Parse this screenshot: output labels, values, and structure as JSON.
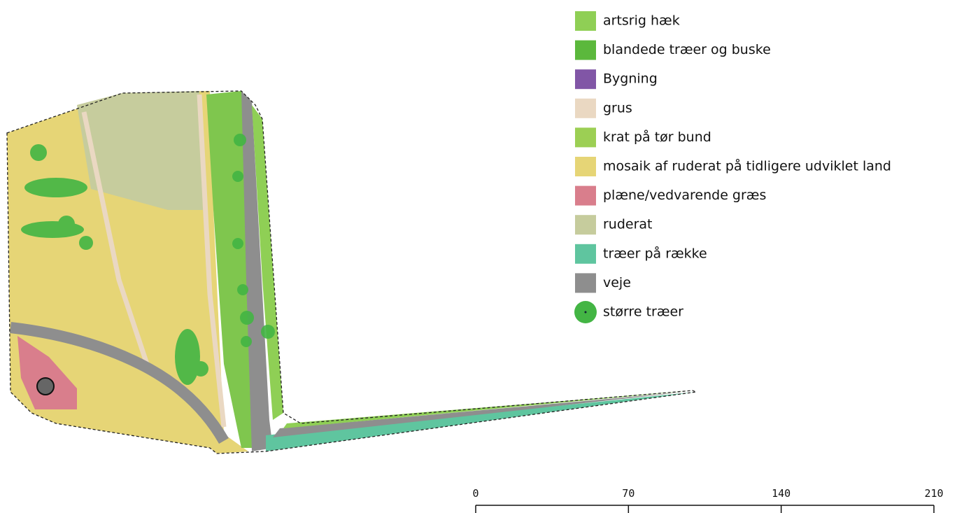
{
  "legend": {
    "items": [
      {
        "label": "artsrig hæk",
        "color": "#8fcf55"
      },
      {
        "label": "blandede træer og buske",
        "color": "#5bb83c"
      },
      {
        "label": "Bygning",
        "color": "#8156a6"
      },
      {
        "label": "grus",
        "color": "#ead8c2"
      },
      {
        "label": "krat på tør bund",
        "color": "#9ccf54"
      },
      {
        "label": "mosaik af ruderat på tidligere udviklet land",
        "color": "#e6d576"
      },
      {
        "label": "plæne/vedvarende græs",
        "color": "#d97e8c"
      },
      {
        "label": "ruderat",
        "color": "#c6cc9d"
      },
      {
        "label": "træer på række",
        "color": "#5fc59f"
      },
      {
        "label": "veje",
        "color": "#8e8e8e"
      },
      {
        "label": "større træer",
        "color": "#43b544"
      }
    ]
  },
  "scale_bar": {
    "ticks": [
      0,
      70,
      140,
      210
    ]
  }
}
